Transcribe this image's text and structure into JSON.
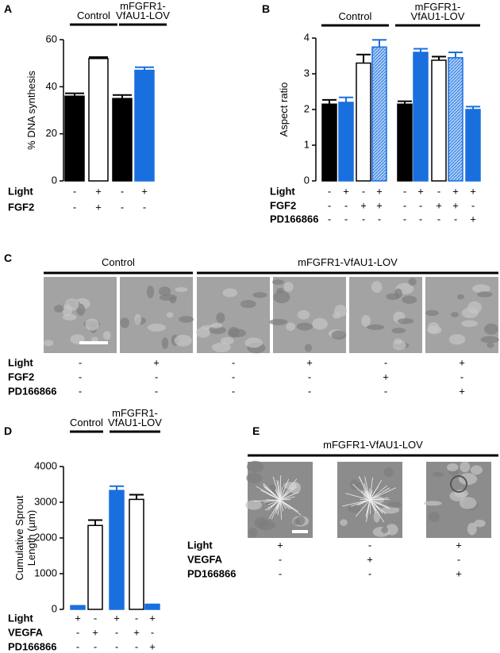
{
  "chart_data": [
    {
      "type": "bar",
      "panel": "A",
      "ylabel": [
        "% DNA synthesis"
      ],
      "ylim": [
        0,
        60
      ],
      "yticks": [
        0,
        20,
        40,
        60
      ],
      "values": [
        36,
        52,
        35,
        47
      ],
      "errors": [
        1.2,
        0.6,
        1.5,
        1.3
      ],
      "colors": [
        "#000000",
        "#ffffff",
        "#000000",
        "#1a6fdf"
      ],
      "hatch": [
        false,
        false,
        false,
        false
      ],
      "groups": [
        [
          "Control"
        ],
        [
          "mFGFR1-",
          "VfAU1-LOV"
        ]
      ],
      "conditions": [
        {
          "name": "Light",
          "marks": [
            "-",
            "+",
            "-",
            "+"
          ]
        },
        {
          "name": "FGF2",
          "marks": [
            "-",
            "+",
            "-",
            "-"
          ]
        }
      ]
    },
    {
      "type": "bar",
      "panel": "B",
      "ylabel": [
        "Aspect ratio"
      ],
      "ylim": [
        0,
        4
      ],
      "yticks": [
        0,
        1,
        2,
        3,
        4
      ],
      "values": [
        2.15,
        2.2,
        3.3,
        3.75,
        2.15,
        3.6,
        3.38,
        3.45,
        2.0
      ],
      "errors": [
        0.12,
        0.14,
        0.24,
        0.2,
        0.08,
        0.1,
        0.1,
        0.15,
        0.08
      ],
      "colors": [
        "#000000",
        "#1a6fdf",
        "#ffffff",
        "#1a6fdf",
        "#000000",
        "#1a6fdf",
        "#ffffff",
        "#1a6fdf",
        "#1a6fdf"
      ],
      "hatch": [
        false,
        false,
        false,
        true,
        false,
        false,
        false,
        true,
        false
      ],
      "groups": [
        [
          "Control"
        ],
        [
          "mFGFR1-",
          "VfAU1-LOV"
        ]
      ],
      "conditions": [
        {
          "name": "Light",
          "marks": [
            "-",
            "+",
            "-",
            "+",
            "-",
            "+",
            "-",
            "+",
            "+"
          ]
        },
        {
          "name": "FGF2",
          "marks": [
            "-",
            "-",
            "+",
            "+",
            "-",
            "-",
            "+",
            "+",
            "-"
          ]
        },
        {
          "name": "PD166866",
          "marks": [
            "-",
            "-",
            "-",
            "-",
            "-",
            "-",
            "-",
            "-",
            "+"
          ]
        }
      ]
    },
    {
      "type": "bar",
      "panel": "D",
      "ylabel": [
        "Cumulative Sprout",
        "Length (µm)"
      ],
      "ylim": [
        0,
        4000
      ],
      "yticks": [
        0,
        1000,
        2000,
        3000,
        4000
      ],
      "values": [
        100,
        2350,
        3330,
        3080,
        140
      ],
      "errors": [
        0,
        150,
        120,
        130,
        0
      ],
      "colors": [
        "#1a6fdf",
        "#ffffff",
        "#1a6fdf",
        "#ffffff",
        "#1a6fdf"
      ],
      "hatch": [
        false,
        false,
        false,
        false,
        false
      ],
      "groups": [
        [
          "Control"
        ],
        [
          "mFGFR1-",
          "VfAU1-LOV"
        ]
      ],
      "conditions": [
        {
          "name": "Light",
          "marks": [
            "+",
            "-",
            "+",
            "-",
            "+"
          ]
        },
        {
          "name": "VEGFA",
          "marks": [
            "-",
            "+",
            "-",
            "+",
            "-"
          ]
        },
        {
          "name": "PD166866",
          "marks": [
            "-",
            "-",
            "-",
            "-",
            "+"
          ]
        }
      ]
    }
  ],
  "image_panels": [
    {
      "panel": "C",
      "groups": [
        "Control",
        "mFGFR1-VfAU1-LOV"
      ],
      "conditions": [
        {
          "name": "Light",
          "marks": [
            "-",
            "+",
            "-",
            "+",
            "-",
            "+"
          ]
        },
        {
          "name": "FGF2",
          "marks": [
            "-",
            "-",
            "-",
            "-",
            "+",
            "-"
          ]
        },
        {
          "name": "PD166866",
          "marks": [
            "-",
            "-",
            "-",
            "-",
            "-",
            "+"
          ]
        }
      ]
    },
    {
      "panel": "E",
      "groups": [
        "mFGFR1-VfAU1-LOV"
      ],
      "conditions": [
        {
          "name": "Light",
          "marks": [
            "+",
            "-",
            "+"
          ]
        },
        {
          "name": "VEGFA",
          "marks": [
            "-",
            "+",
            "-"
          ]
        },
        {
          "name": "PD166866",
          "marks": [
            "-",
            "-",
            "+"
          ]
        }
      ]
    }
  ]
}
